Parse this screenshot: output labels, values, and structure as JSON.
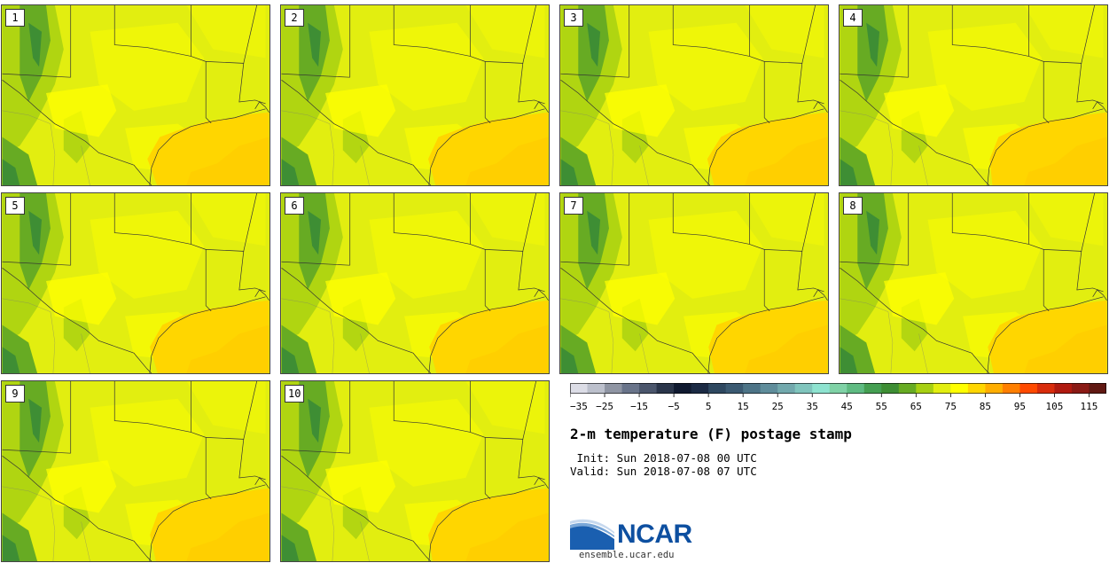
{
  "panels": [
    {
      "label": "1"
    },
    {
      "label": "2"
    },
    {
      "label": "3"
    },
    {
      "label": "4"
    },
    {
      "label": "5"
    },
    {
      "label": "6"
    },
    {
      "label": "7"
    },
    {
      "label": "8"
    },
    {
      "label": "9"
    },
    {
      "label": "10"
    }
  ],
  "colorbar": {
    "tick_labels": [
      "−35",
      "−25",
      "−15",
      "−5",
      "5",
      "15",
      "25",
      "35",
      "45",
      "55",
      "65",
      "75",
      "85",
      "95",
      "105",
      "115"
    ],
    "colors": [
      "#dcdde6",
      "#bcc0cc",
      "#8f95a3",
      "#69748a",
      "#4b566c",
      "#2a354a",
      "#101a30",
      "#1b2a44",
      "#2e4860",
      "#3b5a72",
      "#4d7487",
      "#5f8d9b",
      "#72a9ad",
      "#80c5bd",
      "#8ee3d0",
      "#7fd2a6",
      "#5fbb82",
      "#459f52",
      "#3e8e34",
      "#67ab23",
      "#a7d012",
      "#e2ee10",
      "#ffff00",
      "#ffd600",
      "#ffae00",
      "#ff7f00",
      "#ff4a00",
      "#d92c0c",
      "#b01a10",
      "#8a1a15",
      "#601812"
    ]
  },
  "title": "2-m temperature (F) postage stamp",
  "init": " Init: Sun 2018-07-08 00 UTC",
  "valid": "Valid: Sun 2018-07-08 07 UTC",
  "logo": {
    "text": "NCAR",
    "url": "ensemble.ucar.edu"
  },
  "map_colors": {
    "land": "#e2ee10",
    "warm": "#ffff00",
    "gulf": "#ffd600",
    "cool": "#a7d012",
    "cooler": "#67ab23",
    "coolest": "#3e8e34"
  }
}
